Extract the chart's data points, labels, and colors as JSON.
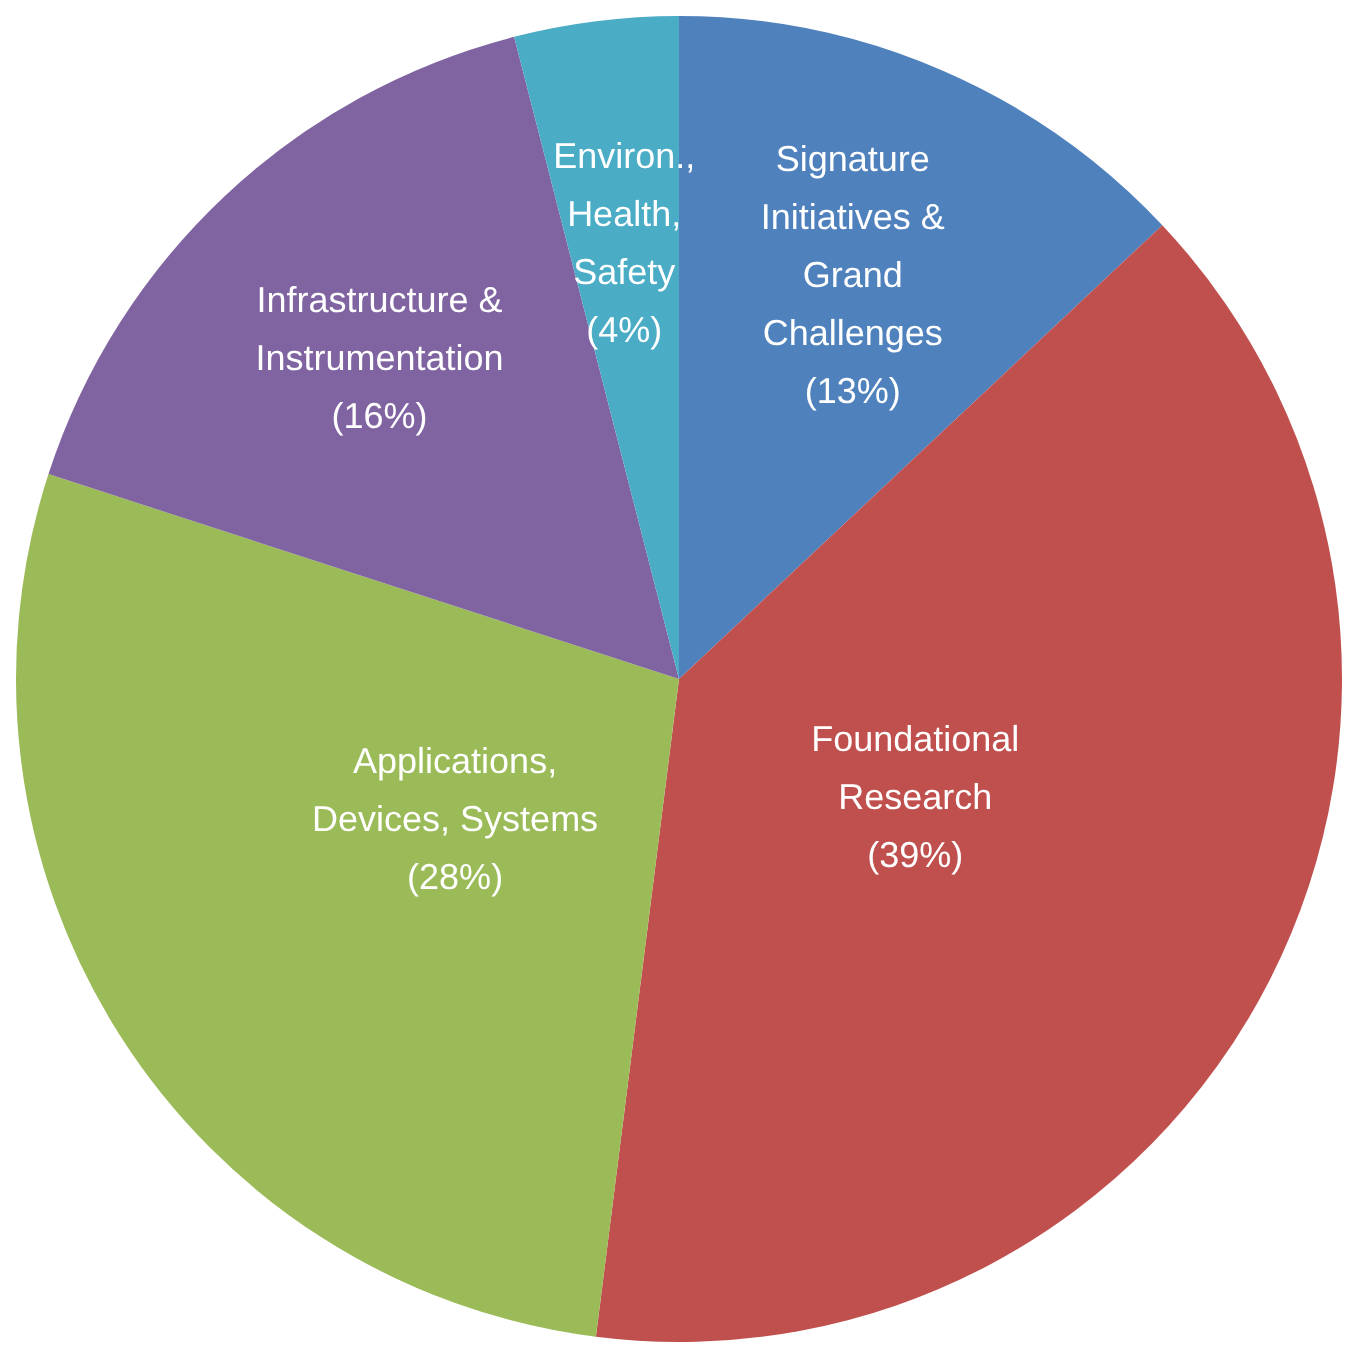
{
  "chart_data": {
    "type": "pie",
    "categories": [
      "Signature\nInitiatives &\nGrand\nChallenges",
      "Foundational\nResearch",
      "Applications,\nDevices, Systems",
      "Infrastructure &\nInstrumentation",
      "Environ.,\nHealth,\nSafety"
    ],
    "values": [
      13,
      39,
      28,
      16,
      4
    ],
    "value_labels": [
      "(13%)",
      "(39%)",
      "(28%)",
      "(16%)",
      "(4%)"
    ],
    "colors": [
      "#4f81bd",
      "#c0504d",
      "#9bbb59",
      "#8064a2",
      "#4bacc6"
    ],
    "legend": false
  }
}
